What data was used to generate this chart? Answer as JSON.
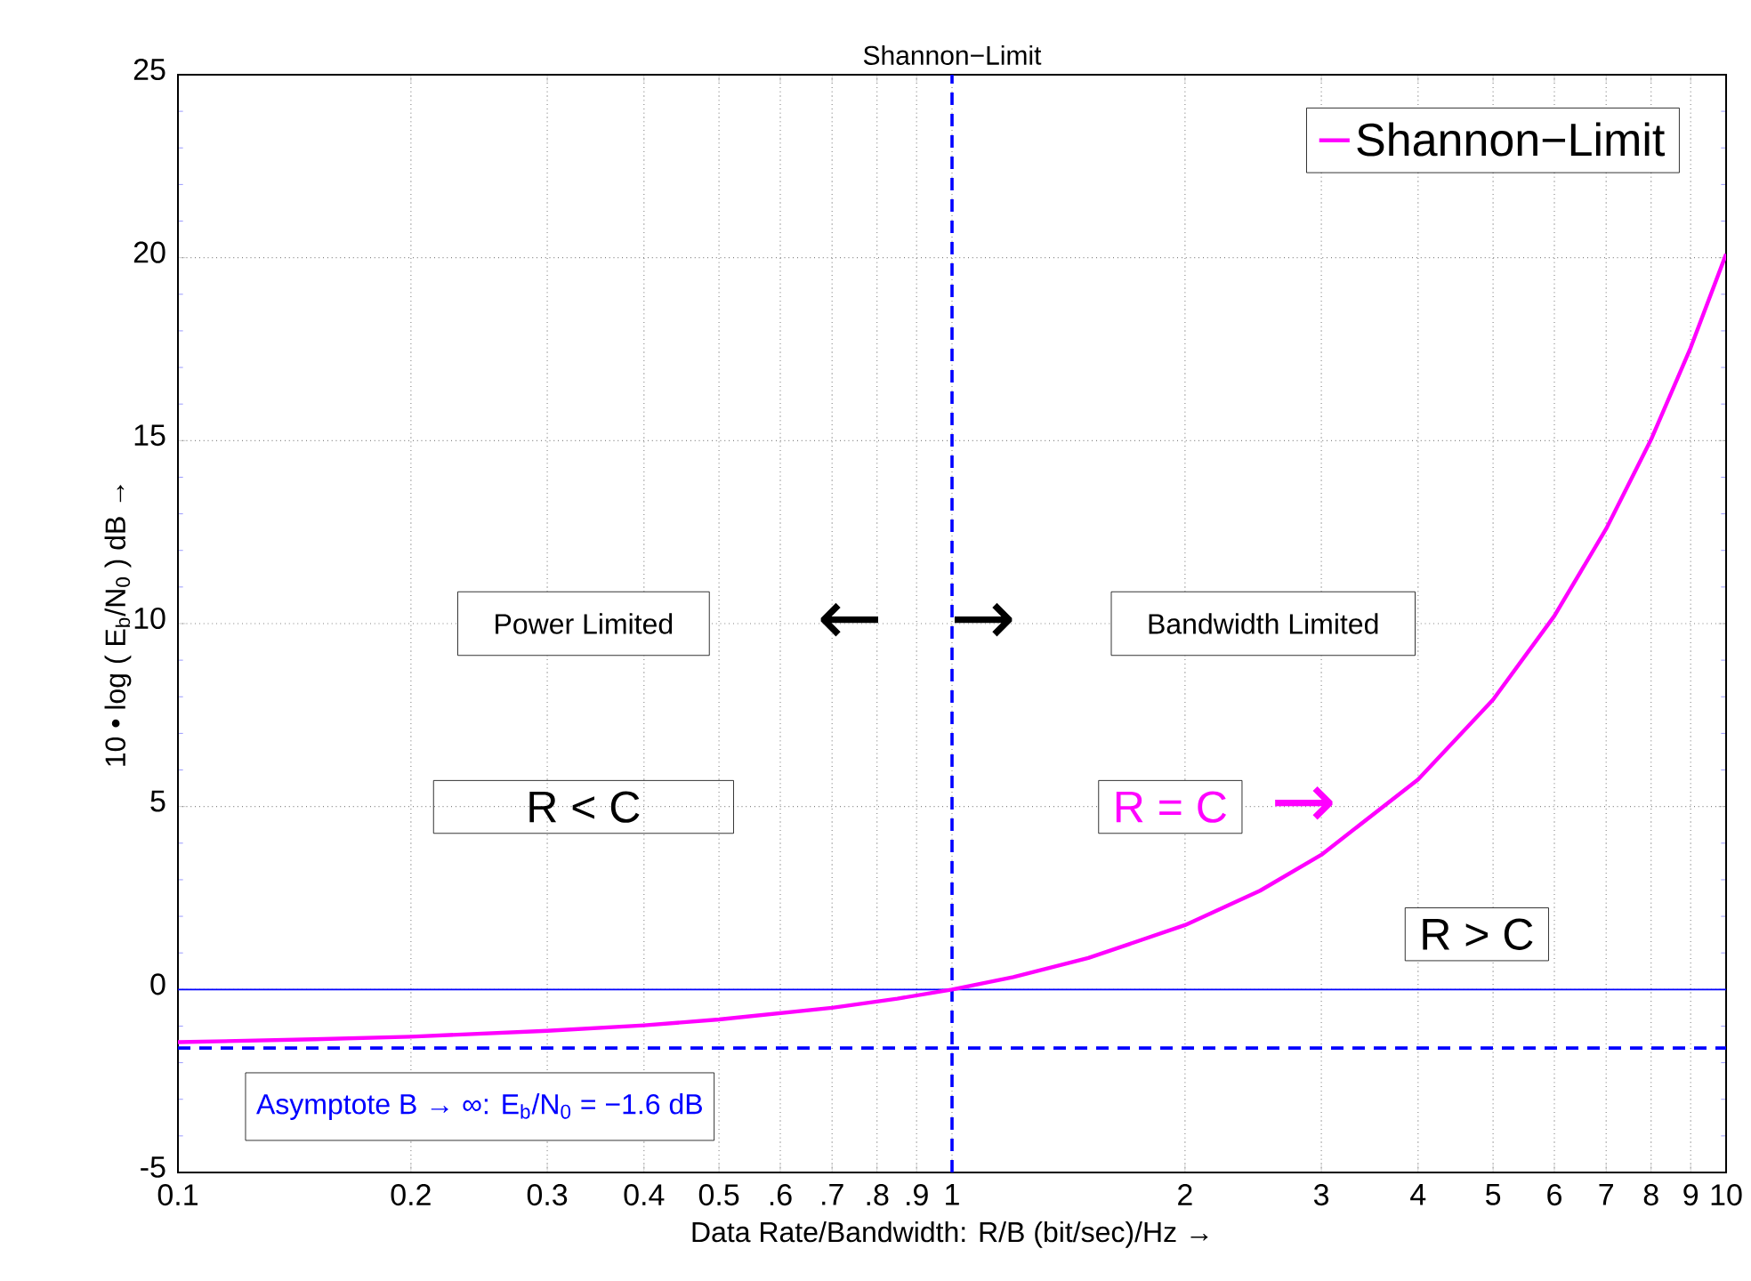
{
  "chart_data": {
    "type": "line",
    "title": "Shannon−Limit",
    "xlabel": "Data Rate/Bandwidth: R/B   (bit/sec)/Hz →",
    "ylabel": "10 • log ( E$_{b}$/N$_{0}$ )  dB   →",
    "log": "x",
    "grid": true,
    "legend": "top right",
    "marker": "none",
    "line_style": "solid",
    "xlim": [
      0.1,
      10
    ],
    "ylim": [
      -5,
      25
    ],
    "xticks": [
      0.1,
      0.2,
      0.3,
      0.4,
      0.5,
      {
        "value": 0.6,
        "label": ".6"
      },
      {
        "value": 0.7,
        "label": ".7"
      },
      {
        "value": 0.8,
        "label": ".8"
      },
      {
        "value": 0.9,
        "label": ".9"
      },
      1,
      2,
      3,
      4,
      5,
      6,
      7,
      8,
      9,
      10
    ],
    "yticks": [
      -5,
      0,
      5,
      10,
      15,
      20,
      25
    ],
    "x": [
      0.1,
      0.15,
      0.2,
      0.3,
      0.4,
      0.5,
      0.7,
      0.85,
      1,
      1.2,
      1.5,
      2,
      2.5,
      3,
      4,
      5,
      6,
      7,
      8,
      9,
      10
    ],
    "series": [
      {
        "name": "Shannon−Limit",
        "color": "#ff00ff",
        "values": [
          -1.44,
          -1.36,
          -1.29,
          -1.13,
          -0.98,
          -0.82,
          -0.5,
          -0.25,
          0,
          0.34,
          0.86,
          1.76,
          2.7,
          3.68,
          5.74,
          7.92,
          10.21,
          12.59,
          15.03,
          17.54,
          20.1
        ]
      }
    ],
    "ref_lines": [
      {
        "axis": "x",
        "value": 1,
        "color": "#0000ff",
        "line_style": "dashed"
      },
      {
        "axis": "y",
        "value": 0,
        "color": "#0000ff",
        "line_style": "solid"
      },
      {
        "axis": "y",
        "value": -1.6,
        "color": "#0000ff",
        "line_style": "dashed",
        "label": "Asymptote  B → ∞: E$_{b}$/N$_{0}$ = −1.6 dB"
      }
    ],
    "annotations": [
      "Power Limited",
      "←",
      "→",
      "Bandwidth Limited",
      "R < C",
      "R = C",
      "→",
      "R > C"
    ]
  }
}
